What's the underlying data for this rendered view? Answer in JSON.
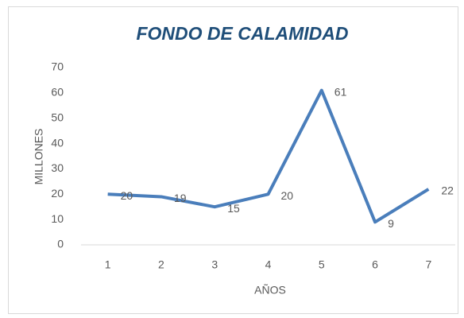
{
  "chart_data": {
    "type": "line",
    "title": "FONDO DE CALAMIDAD",
    "x_label": "AÑOS",
    "y_label": "MILLONES",
    "categories": [
      "1",
      "2",
      "3",
      "4",
      "5",
      "6",
      "7"
    ],
    "values": [
      20,
      19,
      15,
      20,
      61,
      9,
      22
    ],
    "color": "#4a7ebb",
    "ylim": [
      0,
      70
    ],
    "yticks": [
      0,
      10,
      20,
      30,
      40,
      50,
      60,
      70
    ],
    "grid": false,
    "data_labels": true
  }
}
